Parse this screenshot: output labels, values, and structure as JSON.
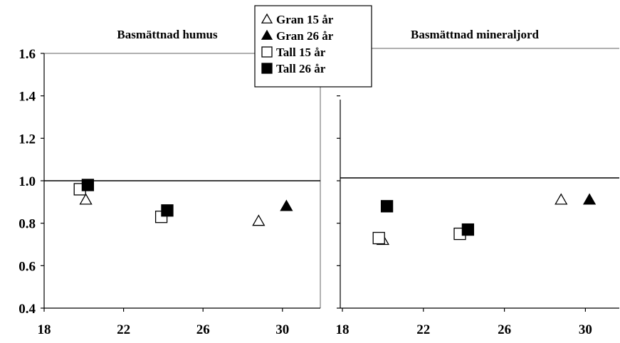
{
  "chart_data": {
    "type": "scatter",
    "y_ticks": [
      "0.4",
      "0.6",
      "0.8",
      "1.0",
      "1.2",
      "1.4",
      "1.6"
    ],
    "y_tick_values": [
      0.4,
      0.6,
      0.8,
      1.0,
      1.2,
      1.4,
      1.6
    ],
    "x_ticks": [
      "18",
      "22",
      "26",
      "30"
    ],
    "x_tick_values": [
      18,
      22,
      26,
      30
    ],
    "xlim": [
      18,
      32
    ],
    "ylim": [
      0.4,
      1.6
    ],
    "reference_line_y": 1.0,
    "grid": false,
    "legend_position": "top-center",
    "legend": [
      {
        "label": "Gran 15 år",
        "marker": "triangle-open"
      },
      {
        "label": "Gran 26 år",
        "marker": "triangle-filled"
      },
      {
        "label": "Tall 15 år",
        "marker": "square-open"
      },
      {
        "label": "Tall 26 år",
        "marker": "square-filled"
      }
    ],
    "panels": [
      {
        "title": "Basmättnad humus",
        "series": [
          {
            "name": "Gran 15 år",
            "marker": "triangle-open",
            "points": [
              {
                "x": 20.1,
                "y": 0.91
              },
              {
                "x": 28.8,
                "y": 0.81
              }
            ]
          },
          {
            "name": "Gran 26 år",
            "marker": "triangle-filled",
            "points": [
              {
                "x": 30.2,
                "y": 0.88
              }
            ]
          },
          {
            "name": "Tall 15 år",
            "marker": "square-open",
            "points": [
              {
                "x": 19.8,
                "y": 0.96
              },
              {
                "x": 23.9,
                "y": 0.83
              }
            ]
          },
          {
            "name": "Tall 26 år",
            "marker": "square-filled",
            "points": [
              {
                "x": 20.2,
                "y": 0.98
              },
              {
                "x": 24.2,
                "y": 0.86
              }
            ]
          }
        ]
      },
      {
        "title": "Basmättnad mineraljord",
        "series": [
          {
            "name": "Gran 15 år",
            "marker": "triangle-open",
            "points": [
              {
                "x": 20.0,
                "y": 0.72
              },
              {
                "x": 28.8,
                "y": 0.91
              }
            ]
          },
          {
            "name": "Gran 26 år",
            "marker": "triangle-filled",
            "points": [
              {
                "x": 30.2,
                "y": 0.91
              }
            ]
          },
          {
            "name": "Tall 15 år",
            "marker": "square-open",
            "points": [
              {
                "x": 19.8,
                "y": 0.73
              },
              {
                "x": 23.8,
                "y": 0.75
              }
            ]
          },
          {
            "name": "Tall 26 år",
            "marker": "square-filled",
            "points": [
              {
                "x": 20.2,
                "y": 0.88
              },
              {
                "x": 24.2,
                "y": 0.77
              }
            ]
          }
        ]
      }
    ]
  }
}
